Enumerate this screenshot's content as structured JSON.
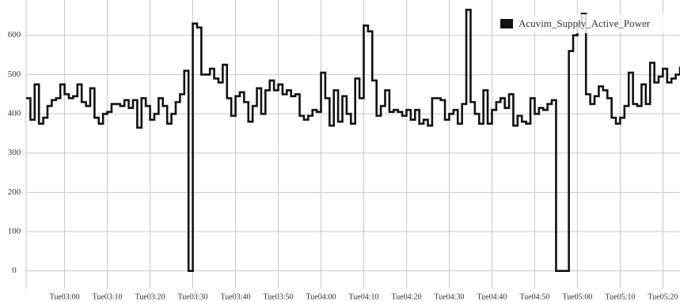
{
  "chart_data": {
    "type": "step-line",
    "x": [
      "Tue02:51",
      "Tue02:52",
      "Tue02:53",
      "Tue02:54",
      "Tue02:55",
      "Tue02:56",
      "Tue02:57",
      "Tue02:58",
      "Tue02:59",
      "Tue03:00",
      "Tue03:01",
      "Tue03:02",
      "Tue03:03",
      "Tue03:04",
      "Tue03:05",
      "Tue03:06",
      "Tue03:07",
      "Tue03:08",
      "Tue03:09",
      "Tue03:10",
      "Tue03:11",
      "Tue03:12",
      "Tue03:13",
      "Tue03:14",
      "Tue03:15",
      "Tue03:16",
      "Tue03:17",
      "Tue03:18",
      "Tue03:19",
      "Tue03:20",
      "Tue03:21",
      "Tue03:22",
      "Tue03:23",
      "Tue03:24",
      "Tue03:25",
      "Tue03:26",
      "Tue03:27",
      "Tue03:28",
      "Tue03:29",
      "Tue03:30",
      "Tue03:31",
      "Tue03:32",
      "Tue03:33",
      "Tue03:34",
      "Tue03:35",
      "Tue03:36",
      "Tue03:37",
      "Tue03:38",
      "Tue03:39",
      "Tue03:40",
      "Tue03:41",
      "Tue03:42",
      "Tue03:43",
      "Tue03:44",
      "Tue03:45",
      "Tue03:46",
      "Tue03:47",
      "Tue03:48",
      "Tue03:49",
      "Tue03:50",
      "Tue03:51",
      "Tue03:52",
      "Tue03:53",
      "Tue03:54",
      "Tue03:55",
      "Tue03:56",
      "Tue03:57",
      "Tue03:58",
      "Tue03:59",
      "Tue04:00",
      "Tue04:01",
      "Tue04:02",
      "Tue04:03",
      "Tue04:04",
      "Tue04:05",
      "Tue04:06",
      "Tue04:07",
      "Tue04:08",
      "Tue04:09",
      "Tue04:10",
      "Tue04:11",
      "Tue04:12",
      "Tue04:13",
      "Tue04:14",
      "Tue04:15",
      "Tue04:16",
      "Tue04:17",
      "Tue04:18",
      "Tue04:19",
      "Tue04:20",
      "Tue04:21",
      "Tue04:22",
      "Tue04:23",
      "Tue04:24",
      "Tue04:25",
      "Tue04:26",
      "Tue04:27",
      "Tue04:28",
      "Tue04:29",
      "Tue04:30",
      "Tue04:31",
      "Tue04:32",
      "Tue04:33",
      "Tue04:34",
      "Tue04:35",
      "Tue04:36",
      "Tue04:37",
      "Tue04:38",
      "Tue04:39",
      "Tue04:40",
      "Tue04:41",
      "Tue04:42",
      "Tue04:43",
      "Tue04:44",
      "Tue04:45",
      "Tue04:46",
      "Tue04:47",
      "Tue04:48",
      "Tue04:49",
      "Tue04:50",
      "Tue04:51",
      "Tue04:52",
      "Tue04:53",
      "Tue04:54",
      "Tue04:55",
      "Tue04:56",
      "Tue04:57",
      "Tue04:58",
      "Tue04:59",
      "Tue05:00",
      "Tue05:01",
      "Tue05:02",
      "Tue05:03",
      "Tue05:04",
      "Tue05:05",
      "Tue05:06",
      "Tue05:07",
      "Tue05:08",
      "Tue05:09",
      "Tue05:10",
      "Tue05:11",
      "Tue05:12",
      "Tue05:13",
      "Tue05:14",
      "Tue05:15",
      "Tue05:16",
      "Tue05:17",
      "Tue05:18",
      "Tue05:19",
      "Tue05:20",
      "Tue05:21",
      "Tue05:22",
      "Tue05:23",
      "Tue05:24"
    ],
    "series": [
      {
        "name": "Acuvim_Supply_Active_Power",
        "color": "#111111",
        "values": [
          440,
          385,
          475,
          375,
          390,
          420,
          435,
          440,
          475,
          450,
          440,
          445,
          475,
          430,
          420,
          465,
          390,
          375,
          400,
          405,
          425,
          425,
          420,
          435,
          415,
          435,
          365,
          440,
          420,
          385,
          400,
          440,
          420,
          375,
          400,
          430,
          450,
          510,
          0,
          630,
          620,
          500,
          500,
          515,
          490,
          480,
          525,
          440,
          395,
          445,
          455,
          430,
          380,
          420,
          465,
          400,
          460,
          485,
          460,
          475,
          450,
          460,
          445,
          450,
          395,
          385,
          395,
          410,
          405,
          505,
          440,
          370,
          460,
          380,
          445,
          400,
          375,
          490,
          440,
          625,
          610,
          485,
          395,
          420,
          460,
          405,
          410,
          405,
          395,
          410,
          385,
          410,
          375,
          385,
          370,
          440,
          440,
          435,
          385,
          400,
          410,
          375,
          425,
          665,
          430,
          400,
          375,
          460,
          375,
          410,
          430,
          440,
          415,
          450,
          370,
          395,
          380,
          375,
          440,
          400,
          415,
          410,
          425,
          435,
          0,
          0,
          0,
          560,
          600,
          630,
          655,
          450,
          425,
          445,
          470,
          460,
          440,
          390,
          375,
          390,
          420,
          505,
          425,
          420,
          475,
          425,
          530,
          480,
          495,
          515,
          480,
          490,
          500,
          520
        ]
      }
    ],
    "xlim": [
      "Tue02:51",
      "Tue05:24"
    ],
    "xticks": [
      "Tue03:00",
      "Tue03:10",
      "Tue03:20",
      "Tue03:30",
      "Tue03:40",
      "Tue03:50",
      "Tue04:00",
      "Tue04:10",
      "Tue04:20",
      "Tue04:30",
      "Tue04:40",
      "Tue04:50",
      "Tue05:00",
      "Tue05:10",
      "Tue05:20"
    ],
    "ylim": [
      -45,
      690
    ],
    "yticks": [
      0,
      100,
      200,
      300,
      400,
      500,
      600
    ],
    "grid": true,
    "legend": "top-right"
  }
}
